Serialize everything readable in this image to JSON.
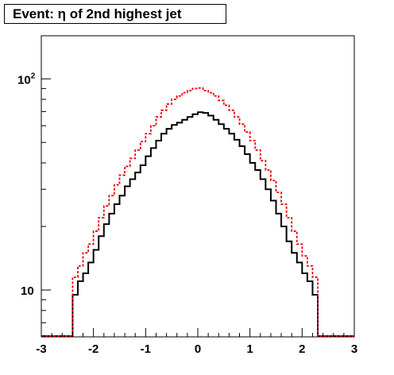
{
  "title": "Event: η of 2nd highest jet",
  "chart_data": {
    "type": "histogram",
    "title": "Event: η of 2nd highest jet",
    "xlabel": "",
    "ylabel": "",
    "xlim": [
      -3,
      3
    ],
    "ylim": [
      6,
      160
    ],
    "y_scale": "log",
    "grid": false,
    "legend": "none",
    "x_tick_labels": [
      "-3",
      "-2",
      "-1",
      "0",
      "1",
      "2",
      "3"
    ],
    "y_tick_labels": [
      {
        "value": 10,
        "label": "10"
      },
      {
        "value": 100,
        "label": "10",
        "sup": "2"
      }
    ],
    "bin_edges_start": -3,
    "bin_width": 0.1,
    "series": [
      {
        "style": "solid",
        "color": "#000000",
        "values": [
          0,
          0,
          0,
          0,
          0,
          0,
          9.5,
          11,
          12,
          13.5,
          15.5,
          18,
          20.5,
          23,
          25.5,
          28,
          31,
          33.5,
          36,
          39,
          43,
          47,
          51,
          55,
          58,
          60.5,
          62,
          64,
          66,
          68,
          69.5,
          69,
          67,
          64,
          61,
          58,
          55,
          51.5,
          48,
          44,
          40,
          37,
          33.5,
          30,
          26.5,
          23,
          20,
          17,
          15,
          13.5,
          12,
          11,
          9.5,
          0,
          0,
          0,
          0,
          0,
          0,
          0
        ]
      },
      {
        "style": "dashed",
        "color": "#e8000b",
        "values": [
          0,
          0,
          0,
          0,
          0,
          0,
          11.5,
          13,
          15,
          16.5,
          19,
          22,
          25,
          28,
          31.5,
          35,
          38.5,
          42,
          46,
          50.5,
          55,
          60,
          66,
          71,
          76,
          80,
          83,
          86,
          88,
          90,
          90.5,
          88,
          86,
          83,
          79,
          75,
          71,
          66,
          61,
          56,
          51,
          46,
          41,
          37,
          33,
          29,
          25.5,
          22,
          19,
          16.5,
          14.5,
          13,
          11.5,
          0,
          0,
          0,
          0,
          0,
          0,
          0
        ]
      }
    ]
  }
}
